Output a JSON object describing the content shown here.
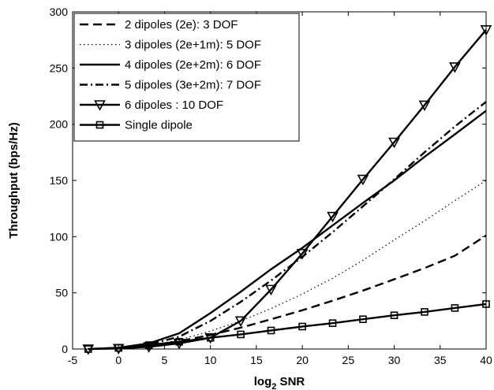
{
  "chart_data": {
    "type": "line",
    "xlabel_base": "log",
    "xlabel_sub": "2",
    "xlabel_rest": " SNR",
    "ylabel": "Throughput (bps/Hz)",
    "xlim": [
      -5,
      40
    ],
    "ylim": [
      0,
      300
    ],
    "xticks": [
      -5,
      0,
      5,
      10,
      15,
      20,
      25,
      30,
      35,
      40
    ],
    "yticks": [
      0,
      50,
      100,
      150,
      200,
      250,
      300
    ],
    "grid": false,
    "legend_position": "top-left",
    "x": [
      -3.3,
      0,
      3.3,
      6.6,
      10,
      13.3,
      16.6,
      20,
      23.3,
      26.6,
      30,
      33.3,
      36.6,
      40
    ],
    "series": [
      {
        "name": "2 dipoles (2e): 3 DOF",
        "dash": "dashed",
        "marker": "none",
        "values": [
          0,
          0.7,
          2.8,
          7,
          12.5,
          19,
          26.5,
          34.5,
          43,
          52,
          62,
          72,
          83,
          101
        ]
      },
      {
        "name": "3 dipoles (2e+1m): 5 DOF",
        "dash": "dotted",
        "marker": "none",
        "values": [
          0,
          0.7,
          3,
          8,
          16,
          25,
          36,
          49,
          63,
          79,
          97,
          114,
          132,
          150
        ]
      },
      {
        "name": "4 dipoles (2e+2m): 6 DOF",
        "dash": "solid",
        "marker": "none",
        "values": [
          0,
          1.2,
          5,
          14,
          32,
          51,
          71,
          90,
          110,
          130,
          150,
          171,
          191,
          212
        ]
      },
      {
        "name": "5 dipoles (3e+2m): 7 DOF",
        "dash": "dashdot",
        "marker": "none",
        "values": [
          0,
          1,
          4,
          11,
          25,
          42,
          61,
          82,
          104,
          127,
          151,
          175,
          198,
          220
        ]
      },
      {
        "name": "6 dipoles : 10 DOF",
        "dash": "solid",
        "marker": "triangle-down",
        "values": [
          0,
          0.5,
          2,
          5,
          10,
          25,
          53,
          85,
          118,
          151,
          184,
          217,
          251,
          284
        ]
      },
      {
        "name": "Single dipole",
        "dash": "solid",
        "marker": "square",
        "values": [
          0,
          1,
          3.5,
          6.5,
          10,
          13,
          16.5,
          20,
          23,
          26.5,
          30,
          33,
          36.5,
          40
        ]
      }
    ]
  }
}
